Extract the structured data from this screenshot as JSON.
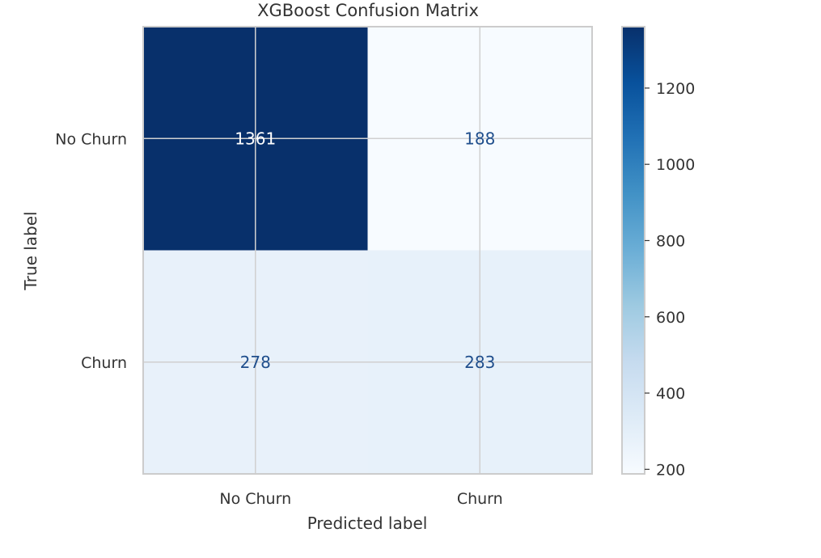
{
  "chart_data": {
    "type": "heatmap",
    "title": "XGBoost Confusion Matrix",
    "xlabel": "Predicted label",
    "ylabel": "True label",
    "x_categories": [
      "No Churn",
      "Churn"
    ],
    "y_categories": [
      "No Churn",
      "Churn"
    ],
    "values": [
      [
        1361,
        188
      ],
      [
        278,
        283
      ]
    ],
    "colormap": "Blues",
    "colorbar": {
      "vmin": 188,
      "vmax": 1361,
      "ticks": [
        200,
        400,
        600,
        800,
        1000,
        1200
      ]
    },
    "grid": true,
    "colors": {
      "dark_text": "#1f4e8c",
      "light_text": "#ffffff",
      "grid": "#d0d0d0",
      "axis_text": "#333333"
    }
  }
}
